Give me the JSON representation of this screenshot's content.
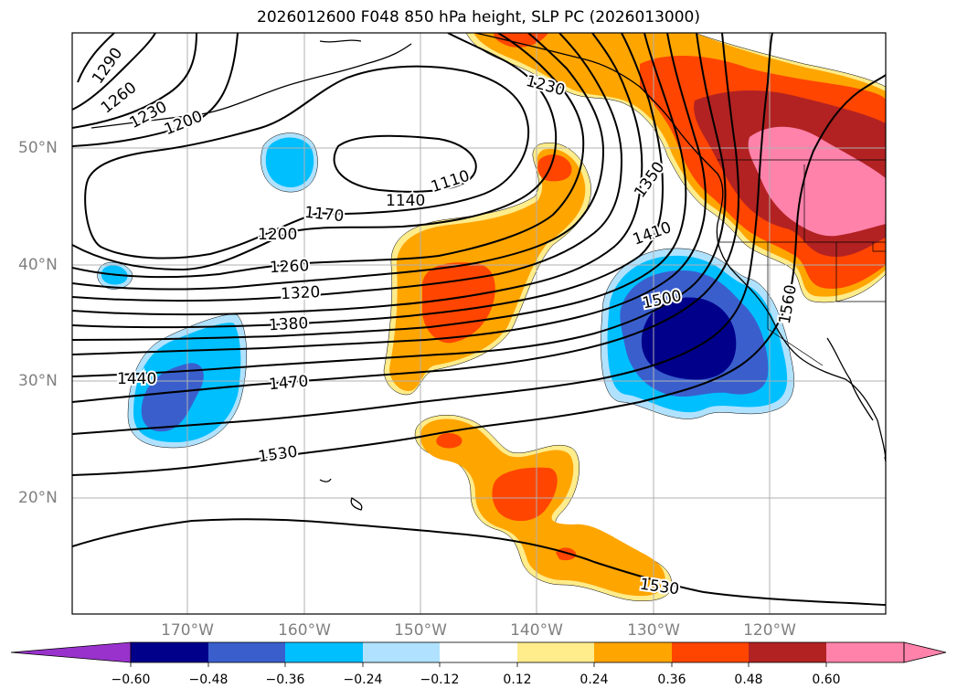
{
  "title": "2026012600 F048 850 hPa height, SLP PC (2026013000)",
  "lat_labels": [
    "50°N",
    "40°N",
    "30°N",
    "20°N"
  ],
  "lon_labels": [
    "170°W",
    "160°W",
    "150°W",
    "140°W",
    "130°W",
    "120°W"
  ],
  "colorbar": {
    "ticks": [
      "−0.60",
      "−0.48",
      "−0.36",
      "−0.24",
      "−0.12",
      "0.12",
      "0.24",
      "0.36",
      "0.48",
      "0.60"
    ],
    "colors": [
      "#9932cc",
      "#00008b",
      "#3a5fcd",
      "#00bfff",
      "#b0e2ff",
      "#ffffff",
      "#ffec8b",
      "#ffa500",
      "#ff4500",
      "#b22222",
      "#ff82ab"
    ]
  },
  "contour_labels": [
    "1290",
    "1260",
    "1230",
    "1200",
    "1230",
    "1110",
    "1140",
    "1170",
    "1200",
    "1260",
    "1320",
    "1380",
    "1440",
    "1470",
    "1530",
    "1530",
    "1350",
    "1410",
    "1500",
    "1560"
  ]
}
